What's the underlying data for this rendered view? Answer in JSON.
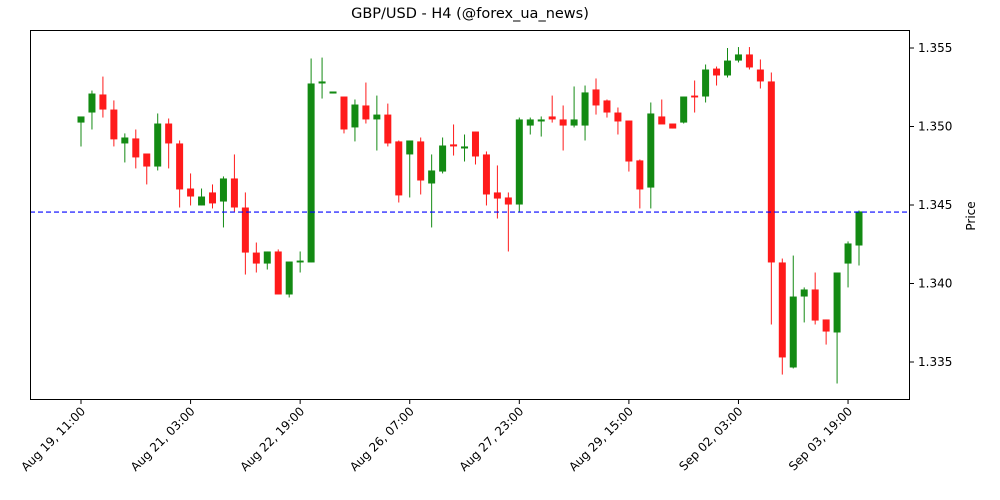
{
  "chart_data": {
    "type": "candlestick",
    "title": "GBP/USD - H4 (@forex_ua_news)",
    "xlabel": "",
    "ylabel": "Price",
    "y_axis_position": "right",
    "ylim": [
      1.3324,
      1.3561
    ],
    "yticks": [
      1.335,
      1.34,
      1.345,
      1.35,
      1.355
    ],
    "ytick_labels": [
      "1.335",
      "1.340",
      "1.345",
      "1.350",
      "1.355"
    ],
    "xtick_labels": [
      "Aug 19, 11:00",
      "Aug 21, 03:00",
      "Aug 22, 19:00",
      "Aug 26, 07:00",
      "Aug 27, 23:00",
      "Aug 29, 15:00",
      "Sep 02, 03:00",
      "Sep 03, 19:00"
    ],
    "xtick_indices": [
      0,
      10,
      20,
      30,
      40,
      50,
      60,
      70
    ],
    "grid": false,
    "horizontal_line": {
      "price": 1.34455,
      "color": "#0000ff",
      "style": "dashed"
    },
    "colors": {
      "up": "#138a13",
      "down": "#ff1a1a"
    },
    "candles": [
      {
        "o": 1.35025,
        "h": 1.35064,
        "l": 1.34873,
        "c": 1.35064
      },
      {
        "o": 1.35089,
        "h": 1.35229,
        "l": 1.34981,
        "c": 1.3521
      },
      {
        "o": 1.35204,
        "h": 1.35318,
        "l": 1.35057,
        "c": 1.35108
      },
      {
        "o": 1.35108,
        "h": 1.35166,
        "l": 1.34873,
        "c": 1.34918
      },
      {
        "o": 1.34892,
        "h": 1.34956,
        "l": 1.34771,
        "c": 1.3493
      },
      {
        "o": 1.34924,
        "h": 1.34981,
        "l": 1.34733,
        "c": 1.34803
      },
      {
        "o": 1.34828,
        "h": 1.34828,
        "l": 1.34631,
        "c": 1.34745
      },
      {
        "o": 1.34745,
        "h": 1.35083,
        "l": 1.3472,
        "c": 1.35019
      },
      {
        "o": 1.35019,
        "h": 1.35051,
        "l": 1.34733,
        "c": 1.34892
      },
      {
        "o": 1.34892,
        "h": 1.34911,
        "l": 1.34484,
        "c": 1.34599
      },
      {
        "o": 1.34605,
        "h": 1.34701,
        "l": 1.34497,
        "c": 1.34554
      },
      {
        "o": 1.34497,
        "h": 1.34605,
        "l": 1.34497,
        "c": 1.34554
      },
      {
        "o": 1.3458,
        "h": 1.34631,
        "l": 1.34478,
        "c": 1.3451
      },
      {
        "o": 1.34522,
        "h": 1.34682,
        "l": 1.34357,
        "c": 1.34669
      },
      {
        "o": 1.34669,
        "h": 1.34822,
        "l": 1.34459,
        "c": 1.34484
      },
      {
        "o": 1.34484,
        "h": 1.3458,
        "l": 1.34057,
        "c": 1.34197
      },
      {
        "o": 1.34197,
        "h": 1.34261,
        "l": 1.3407,
        "c": 1.34127
      },
      {
        "o": 1.34127,
        "h": 1.34204,
        "l": 1.34089,
        "c": 1.34204
      },
      {
        "o": 1.34204,
        "h": 1.34217,
        "l": 1.3393,
        "c": 1.3393
      },
      {
        "o": 1.3393,
        "h": 1.3414,
        "l": 1.33911,
        "c": 1.3414
      },
      {
        "o": 1.34134,
        "h": 1.34204,
        "l": 1.3407,
        "c": 1.34146
      },
      {
        "o": 1.34134,
        "h": 1.35433,
        "l": 1.34134,
        "c": 1.35274
      },
      {
        "o": 1.35274,
        "h": 1.35439,
        "l": 1.35178,
        "c": 1.35287
      },
      {
        "o": 1.3521,
        "h": 1.35223,
        "l": 1.3521,
        "c": 1.35223
      },
      {
        "o": 1.35191,
        "h": 1.35191,
        "l": 1.34956,
        "c": 1.34981
      },
      {
        "o": 1.34994,
        "h": 1.35172,
        "l": 1.34905,
        "c": 1.3514
      },
      {
        "o": 1.35134,
        "h": 1.3528,
        "l": 1.35019,
        "c": 1.35045
      },
      {
        "o": 1.35045,
        "h": 1.35197,
        "l": 1.34847,
        "c": 1.35076
      },
      {
        "o": 1.35076,
        "h": 1.35146,
        "l": 1.34873,
        "c": 1.34892
      },
      {
        "o": 1.34905,
        "h": 1.34911,
        "l": 1.34516,
        "c": 1.34561
      },
      {
        "o": 1.34822,
        "h": 1.34911,
        "l": 1.34548,
        "c": 1.34911
      },
      {
        "o": 1.34905,
        "h": 1.3493,
        "l": 1.34567,
        "c": 1.34656
      },
      {
        "o": 1.34637,
        "h": 1.34822,
        "l": 1.34357,
        "c": 1.3472
      },
      {
        "o": 1.34713,
        "h": 1.3493,
        "l": 1.34701,
        "c": 1.34879
      },
      {
        "o": 1.34886,
        "h": 1.35013,
        "l": 1.34815,
        "c": 1.34873
      },
      {
        "o": 1.3486,
        "h": 1.34949,
        "l": 1.34777,
        "c": 1.34873
      },
      {
        "o": 1.34968,
        "h": 1.34968,
        "l": 1.34758,
        "c": 1.34809
      },
      {
        "o": 1.34822,
        "h": 1.34841,
        "l": 1.34497,
        "c": 1.34567
      },
      {
        "o": 1.3458,
        "h": 1.34752,
        "l": 1.34414,
        "c": 1.34541
      },
      {
        "o": 1.34548,
        "h": 1.3458,
        "l": 1.34204,
        "c": 1.34503
      },
      {
        "o": 1.34503,
        "h": 1.35057,
        "l": 1.34452,
        "c": 1.35045
      },
      {
        "o": 1.35006,
        "h": 1.35057,
        "l": 1.34949,
        "c": 1.35045
      },
      {
        "o": 1.35032,
        "h": 1.35064,
        "l": 1.34936,
        "c": 1.35045
      },
      {
        "o": 1.35064,
        "h": 1.35197,
        "l": 1.35025,
        "c": 1.35045
      },
      {
        "o": 1.35045,
        "h": 1.35134,
        "l": 1.34847,
        "c": 1.35006
      },
      {
        "o": 1.35006,
        "h": 1.35255,
        "l": 1.34994,
        "c": 1.35045
      },
      {
        "o": 1.35006,
        "h": 1.35261,
        "l": 1.34911,
        "c": 1.35217
      },
      {
        "o": 1.35236,
        "h": 1.35306,
        "l": 1.35076,
        "c": 1.35134
      },
      {
        "o": 1.35166,
        "h": 1.35172,
        "l": 1.35057,
        "c": 1.35089
      },
      {
        "o": 1.35089,
        "h": 1.35121,
        "l": 1.34949,
        "c": 1.35032
      },
      {
        "o": 1.35038,
        "h": 1.35038,
        "l": 1.34713,
        "c": 1.34777
      },
      {
        "o": 1.34784,
        "h": 1.3479,
        "l": 1.34478,
        "c": 1.34599
      },
      {
        "o": 1.34611,
        "h": 1.35153,
        "l": 1.34478,
        "c": 1.35083
      },
      {
        "o": 1.35064,
        "h": 1.35172,
        "l": 1.35057,
        "c": 1.35013
      },
      {
        "o": 1.35019,
        "h": 1.35019,
        "l": 1.34987,
        "c": 1.34987
      },
      {
        "o": 1.35025,
        "h": 1.35191,
        "l": 1.35019,
        "c": 1.35191
      },
      {
        "o": 1.35197,
        "h": 1.35293,
        "l": 1.35089,
        "c": 1.35185
      },
      {
        "o": 1.35191,
        "h": 1.35395,
        "l": 1.35153,
        "c": 1.35363
      },
      {
        "o": 1.35369,
        "h": 1.35382,
        "l": 1.35261,
        "c": 1.35325
      },
      {
        "o": 1.35325,
        "h": 1.355,
        "l": 1.35312,
        "c": 1.3542
      },
      {
        "o": 1.3542,
        "h": 1.35506,
        "l": 1.35408,
        "c": 1.35459
      },
      {
        "o": 1.35459,
        "h": 1.35506,
        "l": 1.35363,
        "c": 1.35376
      },
      {
        "o": 1.35363,
        "h": 1.35427,
        "l": 1.35242,
        "c": 1.35287
      },
      {
        "o": 1.35287,
        "h": 1.35344,
        "l": 1.33739,
        "c": 1.34134
      },
      {
        "o": 1.34134,
        "h": 1.34159,
        "l": 1.3342,
        "c": 1.33529
      },
      {
        "o": 1.33465,
        "h": 1.34178,
        "l": 1.33459,
        "c": 1.33917
      },
      {
        "o": 1.33917,
        "h": 1.33975,
        "l": 1.33752,
        "c": 1.33962
      },
      {
        "o": 1.33962,
        "h": 1.3407,
        "l": 1.33739,
        "c": 1.33764
      },
      {
        "o": 1.33771,
        "h": 1.33771,
        "l": 1.33611,
        "c": 1.33694
      },
      {
        "o": 1.33688,
        "h": 1.3407,
        "l": 1.33363,
        "c": 1.3407
      },
      {
        "o": 1.34127,
        "h": 1.34268,
        "l": 1.33975,
        "c": 1.34255
      },
      {
        "o": 1.34242,
        "h": 1.34465,
        "l": 1.34115,
        "c": 1.34459
      }
    ]
  }
}
